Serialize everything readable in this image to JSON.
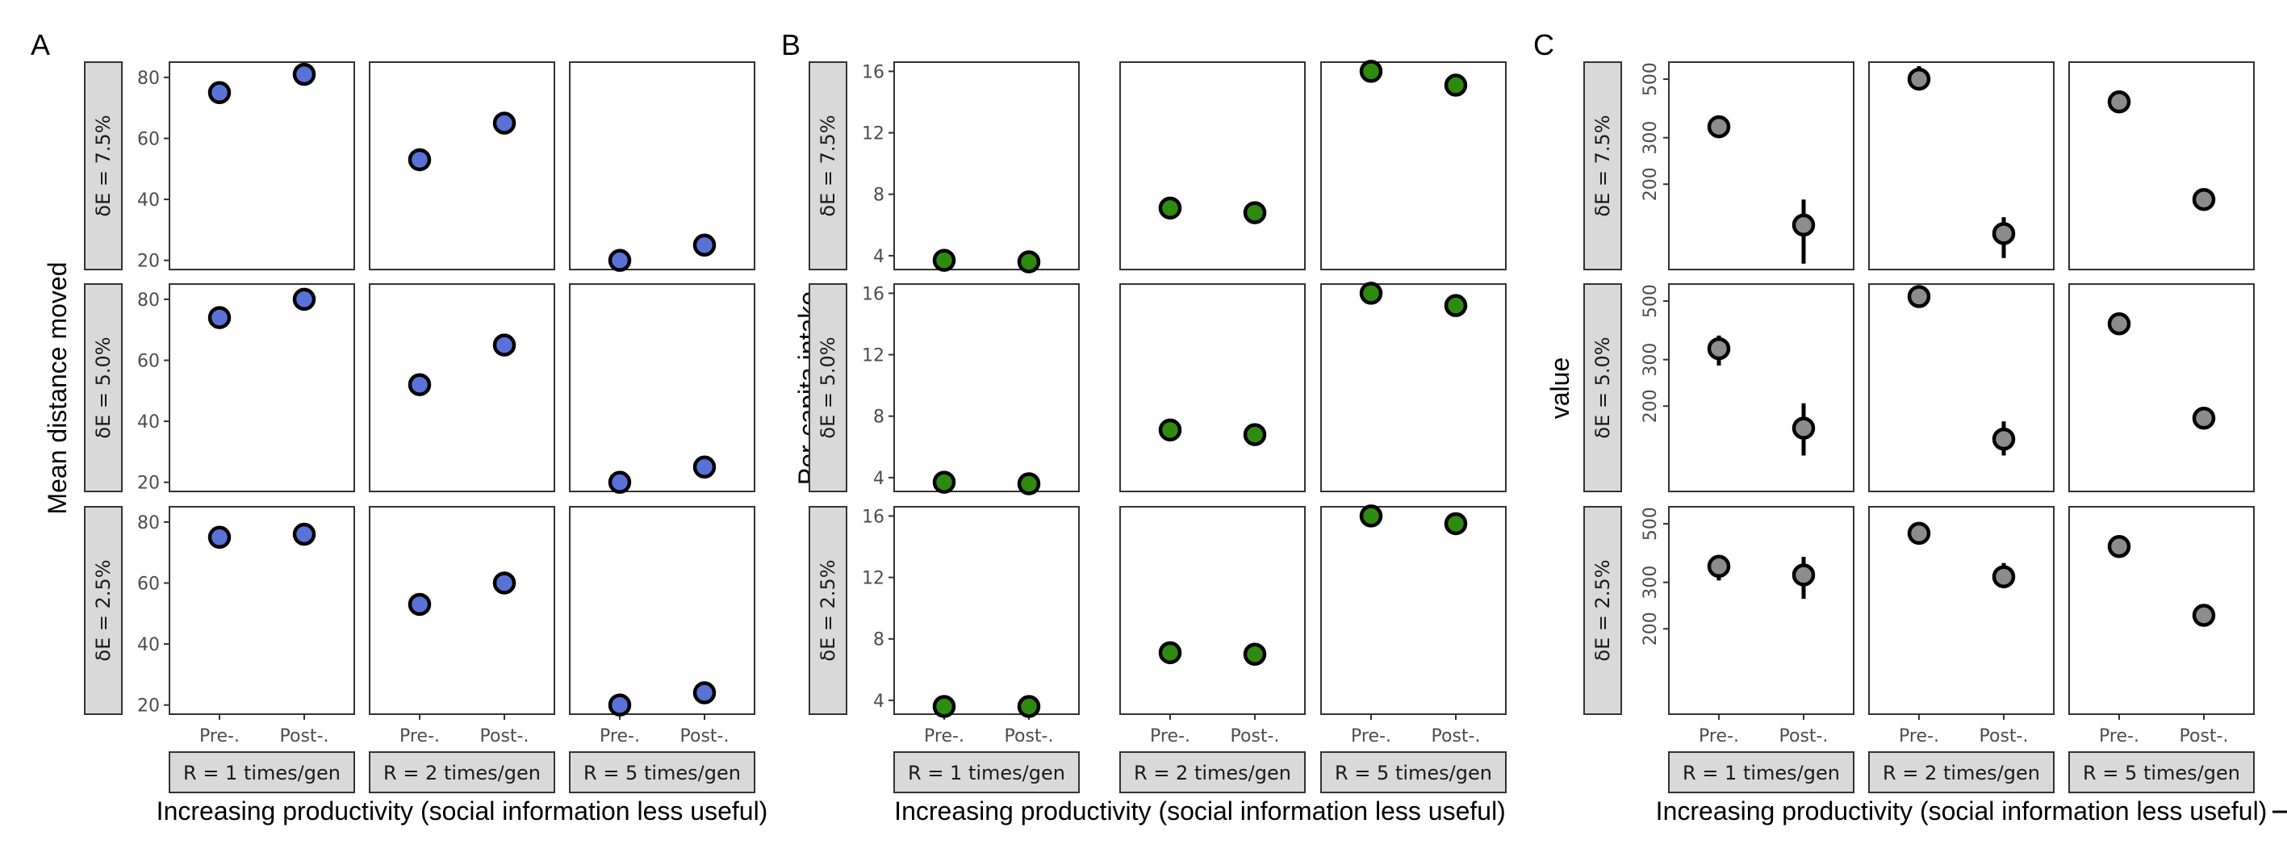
{
  "chart_data": [
    {
      "type": "scatter",
      "panel_label": "A",
      "ylabel": "Mean distance moved",
      "xlabel": "Increasing productivity (social information less useful)",
      "rows": [
        "δE = 7.5%",
        "δE = 5.0%",
        "δE = 2.5%"
      ],
      "cols": [
        "R = 1 times/gen",
        "R = 2 times/gen",
        "R = 5 times/gen"
      ],
      "x_categories": [
        "Pre-.",
        "Post-."
      ],
      "ylim": [
        17,
        85
      ],
      "yticks": [
        20,
        40,
        60,
        80
      ],
      "point_color": "#5a72d8",
      "values": [
        [
          [
            75,
            81
          ],
          [
            53,
            65
          ],
          [
            20,
            25
          ]
        ],
        [
          [
            74,
            80
          ],
          [
            52,
            65
          ],
          [
            20,
            25
          ]
        ],
        [
          [
            75,
            76
          ],
          [
            53,
            60
          ],
          [
            20,
            24
          ]
        ]
      ]
    },
    {
      "type": "scatter",
      "panel_label": "B",
      "ylabel": "Per-capita intake",
      "xlabel": "Increasing productivity (social information less useful)",
      "rows": [
        "δE = 7.5%",
        "δE = 5.0%",
        "δE = 2.5%"
      ],
      "cols": [
        "R = 1 times/gen",
        "R = 2 times/gen",
        "R = 5 times/gen"
      ],
      "x_categories": [
        "Pre-.",
        "Post-."
      ],
      "ylim": [
        3.1,
        16.6
      ],
      "yticks": [
        4,
        8,
        12,
        16
      ],
      "point_color": "#2e8b0f",
      "values": [
        [
          [
            3.7,
            3.6
          ],
          [
            7.1,
            6.8
          ],
          [
            16.0,
            15.1
          ]
        ],
        [
          [
            3.7,
            3.6
          ],
          [
            7.1,
            6.8
          ],
          [
            16.0,
            15.2
          ]
        ],
        [
          [
            3.6,
            3.6
          ],
          [
            7.1,
            7.0
          ],
          [
            16.0,
            15.5
          ]
        ]
      ]
    },
    {
      "type": "scatter",
      "panel_label": "C",
      "ylabel": "value",
      "xlabel": "Increasing productivity (social information less useful)",
      "rows": [
        "δE = 7.5%",
        "δE = 5.0%",
        "δE = 2.5%"
      ],
      "cols": [
        "R = 1 times/gen",
        "R = 2 times/gen",
        "R = 5 times/gen"
      ],
      "x_categories": [
        "Pre-.",
        "Post-."
      ],
      "y_scale": "log",
      "ylim": [
        95,
        580
      ],
      "yticks": [
        200,
        300,
        500
      ],
      "point_color": "#8c8c8c",
      "values": [
        [
          [
            330,
            140
          ],
          [
            500,
            130
          ],
          [
            410,
            175
          ]
        ],
        [
          [
            330,
            165
          ],
          [
            520,
            150
          ],
          [
            410,
            180
          ]
        ],
        [
          [
            345,
            320
          ],
          [
            460,
            315
          ],
          [
            410,
            225
          ]
        ]
      ],
      "error_low": [
        [
          [
            300,
            100
          ],
          [
            455,
            105
          ],
          [
            null,
            null
          ]
        ],
        [
          [
            285,
            130
          ],
          [
            null,
            130
          ],
          [
            null,
            null
          ]
        ],
        [
          [
            305,
            260
          ],
          [
            430,
            285
          ],
          [
            null,
            null
          ]
        ]
      ],
      "error_high": [
        [
          [
            360,
            175
          ],
          [
            560,
            150
          ],
          [
            null,
            null
          ]
        ],
        [
          [
            370,
            205
          ],
          [
            null,
            175
          ],
          [
            null,
            null
          ]
        ],
        [
          [
            380,
            375
          ],
          [
            490,
            355
          ],
          [
            null,
            null
          ]
        ]
      ]
    }
  ]
}
